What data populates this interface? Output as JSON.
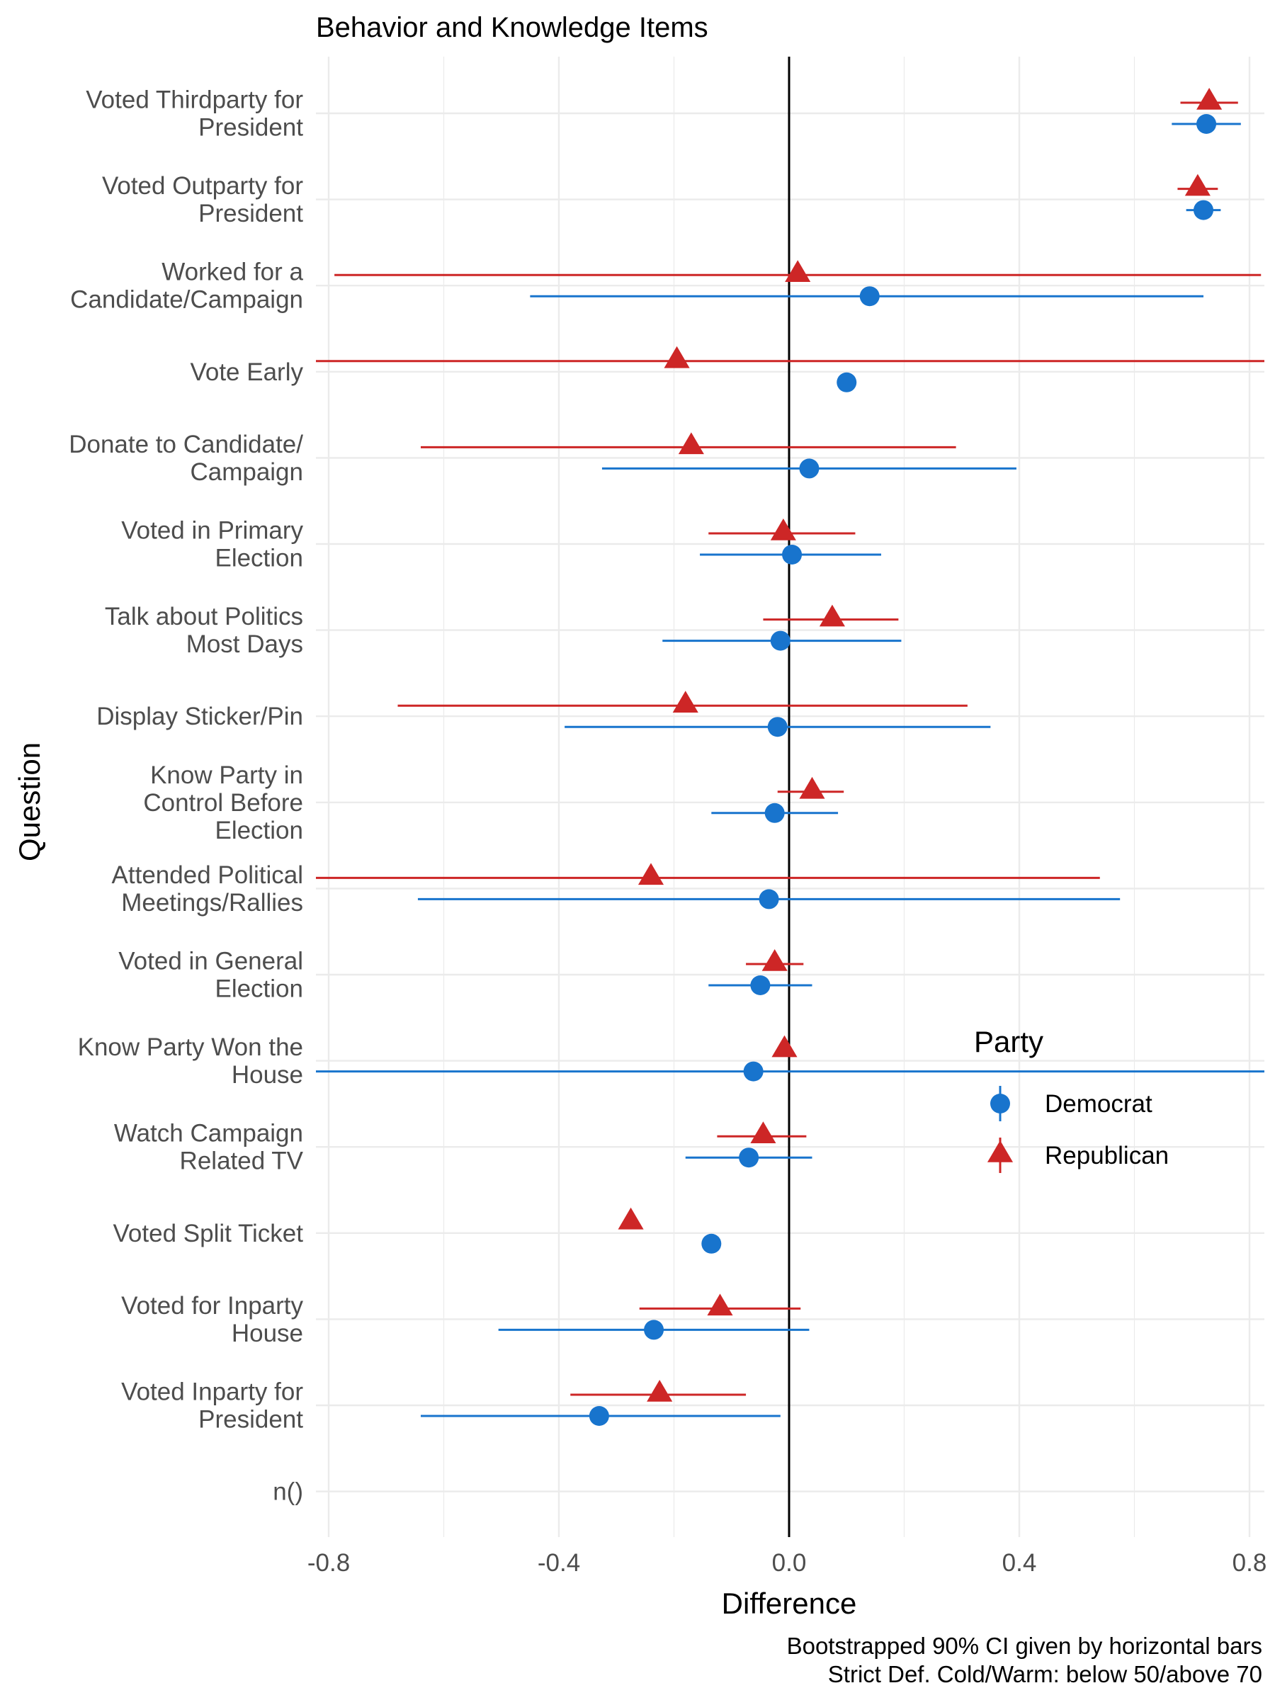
{
  "chart_data": {
    "type": "scatter",
    "title": "Behavior and Knowledge Items",
    "xlabel": "Difference",
    "ylabel": "Question",
    "xlim": [
      -0.8,
      0.8
    ],
    "x_ticks": [
      "-0.8",
      "-0.4",
      "0.0",
      "0.4",
      "0.8"
    ],
    "x_tick_values": [
      -0.8,
      -0.4,
      0.0,
      0.4,
      0.8
    ],
    "reference_line_x": 0,
    "grid": true,
    "legend_position": "right",
    "legend": {
      "title": "Party",
      "entries": [
        {
          "name": "Democrat",
          "color": "#1874CD",
          "marker": "circle"
        },
        {
          "name": "Republican",
          "color": "#CD2626",
          "marker": "triangle"
        }
      ]
    },
    "caption": [
      "Bootstrapped 90% CI given by horizontal bars",
      "Strict Def. Cold/Warm: below 50/above 70"
    ],
    "categories": [
      [
        "Voted Thirdparty for",
        "President"
      ],
      [
        "Voted Outparty for",
        "President"
      ],
      [
        "Worked for a",
        "Candidate/Campaign"
      ],
      [
        "Vote Early"
      ],
      [
        "Donate to Candidate/",
        "Campaign"
      ],
      [
        "Voted in Primary",
        "Election"
      ],
      [
        "Talk about Politics",
        "Most Days"
      ],
      [
        "Display Sticker/Pin"
      ],
      [
        "Know Party in",
        "Control Before",
        "Election"
      ],
      [
        "Attended Political",
        "Meetings/Rallies"
      ],
      [
        "Voted in General",
        "Election"
      ],
      [
        "Know Party Won the",
        "House"
      ],
      [
        "Watch Campaign",
        "Related TV"
      ],
      [
        "Voted Split Ticket"
      ],
      [
        "Voted for Inparty",
        "House"
      ],
      [
        "Voted Inparty for",
        "President"
      ],
      [
        "n()"
      ]
    ],
    "series": [
      {
        "name": "Republican",
        "color": "#CD2626",
        "marker": "triangle",
        "points": [
          {
            "category": 0,
            "value": 0.73,
            "lo": 0.68,
            "hi": 0.78
          },
          {
            "category": 1,
            "value": 0.71,
            "lo": 0.675,
            "hi": 0.745
          },
          {
            "category": 2,
            "value": 0.015,
            "lo": -0.79,
            "hi": 0.82
          },
          {
            "category": 3,
            "value": -0.195,
            "lo": -0.83,
            "hi": 0.83
          },
          {
            "category": 4,
            "value": -0.17,
            "lo": -0.64,
            "hi": 0.29
          },
          {
            "category": 5,
            "value": -0.01,
            "lo": -0.14,
            "hi": 0.115
          },
          {
            "category": 6,
            "value": 0.075,
            "lo": -0.045,
            "hi": 0.19
          },
          {
            "category": 7,
            "value": -0.18,
            "lo": -0.68,
            "hi": 0.31
          },
          {
            "category": 8,
            "value": 0.04,
            "lo": -0.02,
            "hi": 0.095
          },
          {
            "category": 9,
            "value": -0.24,
            "lo": -0.83,
            "hi": 0.54
          },
          {
            "category": 10,
            "value": -0.025,
            "lo": -0.075,
            "hi": 0.025
          },
          {
            "category": 11,
            "value": -0.008,
            "lo": null,
            "hi": null
          },
          {
            "category": 12,
            "value": -0.045,
            "lo": -0.125,
            "hi": 0.03
          },
          {
            "category": 13,
            "value": -0.275,
            "lo": null,
            "hi": null
          },
          {
            "category": 14,
            "value": -0.12,
            "lo": -0.26,
            "hi": 0.02
          },
          {
            "category": 15,
            "value": -0.225,
            "lo": -0.38,
            "hi": -0.075
          }
        ]
      },
      {
        "name": "Democrat",
        "color": "#1874CD",
        "marker": "circle",
        "points": [
          {
            "category": 0,
            "value": 0.725,
            "lo": 0.665,
            "hi": 0.785
          },
          {
            "category": 1,
            "value": 0.72,
            "lo": 0.69,
            "hi": 0.75
          },
          {
            "category": 2,
            "value": 0.14,
            "lo": -0.45,
            "hi": 0.72
          },
          {
            "category": 3,
            "value": 0.1,
            "lo": null,
            "hi": null
          },
          {
            "category": 4,
            "value": 0.035,
            "lo": -0.325,
            "hi": 0.395
          },
          {
            "category": 5,
            "value": 0.005,
            "lo": -0.155,
            "hi": 0.16
          },
          {
            "category": 6,
            "value": -0.015,
            "lo": -0.22,
            "hi": 0.195
          },
          {
            "category": 7,
            "value": -0.02,
            "lo": -0.39,
            "hi": 0.35
          },
          {
            "category": 8,
            "value": -0.025,
            "lo": -0.135,
            "hi": 0.085
          },
          {
            "category": 9,
            "value": -0.035,
            "lo": -0.645,
            "hi": 0.575
          },
          {
            "category": 10,
            "value": -0.05,
            "lo": -0.14,
            "hi": 0.04
          },
          {
            "category": 11,
            "value": -0.062,
            "lo": -0.83,
            "hi": 0.83
          },
          {
            "category": 12,
            "value": -0.07,
            "lo": -0.18,
            "hi": 0.04
          },
          {
            "category": 13,
            "value": -0.135,
            "lo": null,
            "hi": null
          },
          {
            "category": 14,
            "value": -0.235,
            "lo": -0.505,
            "hi": 0.035
          },
          {
            "category": 15,
            "value": -0.33,
            "lo": -0.64,
            "hi": -0.015
          }
        ]
      }
    ]
  }
}
